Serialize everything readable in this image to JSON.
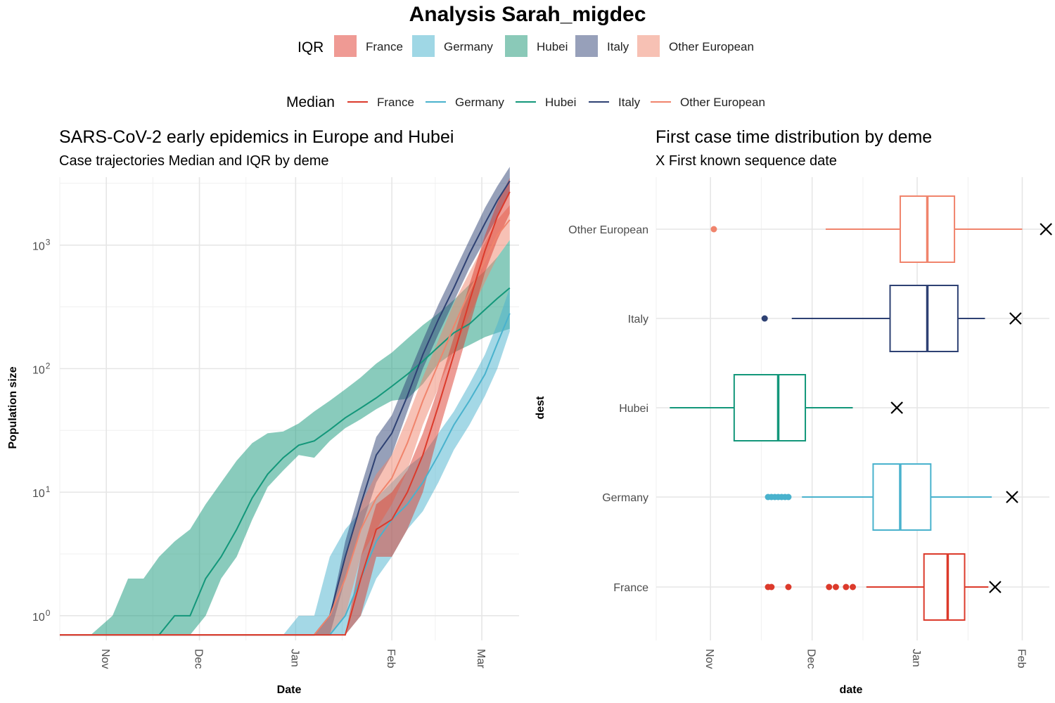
{
  "figure": {
    "title": "Analysis  Sarah_migdec",
    "legend_iqr_title": "IQR",
    "legend_median_title": "Median",
    "demes": [
      "France",
      "Germany",
      "Hubei",
      "Italy",
      "Other European"
    ]
  },
  "colors": {
    "France": "#dc3a2b",
    "Germany": "#49b2cd",
    "Hubei": "#13977a",
    "Italy": "#2e4173",
    "Other European": "#f0846c",
    "France_fill": "#ef9a94",
    "Germany_fill": "#9fd7e5",
    "Hubei_fill": "#8ac9b8",
    "Italy_fill": "#97a0ba",
    "Other European_fill": "#f7c1b4"
  },
  "chart_data": [
    {
      "type": "area",
      "title": "SARS-CoV-2 early epidemics in Europe and Hubei",
      "subtitle": "Case trajectories Median and IQR by deme",
      "xlabel": "Date",
      "ylabel": "Population size",
      "x_ticks": [
        "Nov",
        "Dec",
        "Jan",
        "Feb",
        "Mar"
      ],
      "x_tick_dates": [
        "2019-11-01",
        "2019-12-01",
        "2020-01-01",
        "2020-02-01",
        "2020-03-01"
      ],
      "xlim": [
        "2019-10-17",
        "2020-03-13"
      ],
      "y_scale": "log10",
      "y_ticks": [
        1,
        10,
        100,
        1000
      ],
      "ylim_log10": [
        -0.2,
        3.55
      ],
      "series": [
        {
          "name": "Hubei",
          "dates": [
            "2019-10-17",
            "2019-10-27",
            "2019-11-03",
            "2019-11-08",
            "2019-11-13",
            "2019-11-18",
            "2019-11-23",
            "2019-11-28",
            "2019-12-03",
            "2019-12-08",
            "2019-12-13",
            "2019-12-18",
            "2019-12-23",
            "2019-12-28",
            "2020-01-02",
            "2020-01-07",
            "2020-01-12",
            "2020-01-17",
            "2020-01-22",
            "2020-01-27",
            "2020-02-01",
            "2020-02-06",
            "2020-02-11",
            "2020-02-16",
            "2020-02-21",
            "2020-02-26",
            "2020-03-02",
            "2020-03-06",
            "2020-03-10"
          ],
          "median": [
            0.7,
            0.7,
            0.7,
            0.7,
            0.7,
            0.7,
            1,
            1,
            2,
            3,
            5,
            9,
            14,
            19,
            24,
            26,
            32,
            40,
            48,
            58,
            72,
            90,
            115,
            150,
            195,
            230,
            300,
            370,
            450
          ],
          "lower": [
            0.7,
            0.7,
            0.7,
            0.7,
            0.7,
            0.7,
            0.7,
            0.7,
            1,
            2,
            3,
            6,
            11,
            15,
            20,
            19,
            26,
            33,
            39,
            47,
            55,
            57,
            75,
            110,
            135,
            155,
            180,
            195,
            210
          ],
          "upper": [
            0.7,
            0.7,
            1,
            2,
            2,
            3,
            4,
            5,
            8,
            12,
            18,
            25,
            30,
            31,
            36,
            45,
            55,
            68,
            85,
            110,
            135,
            175,
            225,
            280,
            360,
            480,
            620,
            800,
            1100
          ]
        },
        {
          "name": "Germany",
          "dates": [
            "2019-10-17",
            "2019-12-23",
            "2019-12-28",
            "2020-01-02",
            "2020-01-07",
            "2020-01-12",
            "2020-01-17",
            "2020-01-22",
            "2020-01-27",
            "2020-02-01",
            "2020-02-06",
            "2020-02-11",
            "2020-02-16",
            "2020-02-21",
            "2020-02-26",
            "2020-03-02",
            "2020-03-06",
            "2020-03-10"
          ],
          "median": [
            0.7,
            0.7,
            0.7,
            0.7,
            0.7,
            0.7,
            1,
            2,
            4,
            6,
            8,
            12,
            20,
            35,
            55,
            90,
            160,
            280
          ],
          "lower": [
            0.7,
            0.7,
            0.7,
            0.7,
            0.7,
            0.7,
            0.7,
            1,
            2,
            3,
            5,
            7,
            12,
            22,
            35,
            60,
            100,
            200
          ],
          "upper": [
            0.7,
            0.7,
            0.7,
            1,
            1,
            3,
            5,
            7,
            9,
            12,
            16,
            20,
            30,
            45,
            75,
            130,
            230,
            450
          ]
        },
        {
          "name": "Italy",
          "dates": [
            "2019-10-17",
            "2020-01-02",
            "2020-01-07",
            "2020-01-12",
            "2020-01-17",
            "2020-01-22",
            "2020-01-27",
            "2020-02-01",
            "2020-02-06",
            "2020-02-11",
            "2020-02-16",
            "2020-02-21",
            "2020-02-26",
            "2020-03-02",
            "2020-03-06",
            "2020-03-10"
          ],
          "median": [
            0.7,
            0.7,
            0.7,
            1,
            3,
            8,
            20,
            30,
            60,
            130,
            250,
            450,
            850,
            1500,
            2300,
            3300
          ],
          "lower": [
            0.7,
            0.7,
            0.7,
            0.7,
            2,
            5,
            12,
            20,
            45,
            100,
            190,
            350,
            650,
            1100,
            1700,
            2600
          ],
          "upper": [
            0.7,
            0.7,
            0.7,
            1,
            4,
            11,
            28,
            42,
            85,
            170,
            330,
            600,
            1100,
            2000,
            3000,
            4300
          ]
        },
        {
          "name": "Other European",
          "dates": [
            "2019-10-17",
            "2020-01-02",
            "2020-01-07",
            "2020-01-12",
            "2020-01-17",
            "2020-01-22",
            "2020-01-27",
            "2020-02-01",
            "2020-02-06",
            "2020-02-11",
            "2020-02-16",
            "2020-02-21",
            "2020-02-26",
            "2020-03-02",
            "2020-03-06",
            "2020-03-10"
          ],
          "median": [
            0.7,
            0.7,
            0.7,
            1,
            2,
            5,
            9,
            13,
            25,
            55,
            110,
            220,
            420,
            750,
            1200,
            1600
          ],
          "lower": [
            0.7,
            0.7,
            0.7,
            0.7,
            1,
            3,
            5,
            8,
            15,
            35,
            70,
            140,
            270,
            500,
            800,
            1100
          ],
          "upper": [
            0.7,
            0.7,
            0.7,
            1,
            3,
            8,
            14,
            20,
            40,
            85,
            170,
            340,
            600,
            1050,
            1600,
            2100
          ]
        },
        {
          "name": "France",
          "dates": [
            "2019-10-17",
            "2020-01-12",
            "2020-01-17",
            "2020-01-22",
            "2020-01-27",
            "2020-02-01",
            "2020-02-06",
            "2020-02-11",
            "2020-02-16",
            "2020-02-21",
            "2020-02-26",
            "2020-03-02",
            "2020-03-06",
            "2020-03-10"
          ],
          "median": [
            0.7,
            0.7,
            0.7,
            2,
            5,
            6,
            10,
            20,
            50,
            130,
            350,
            900,
            1700,
            2700
          ],
          "lower": [
            0.7,
            0.7,
            0.7,
            1,
            3,
            3,
            5,
            10,
            30,
            80,
            220,
            600,
            1100,
            1800
          ],
          "upper": [
            0.7,
            0.7,
            0.7,
            3,
            8,
            10,
            15,
            30,
            70,
            180,
            480,
            1200,
            2200,
            3500
          ]
        }
      ]
    },
    {
      "type": "box",
      "title": "First case time distribution by deme",
      "subtitle": "X First known sequence date",
      "xlabel": "date",
      "ylabel": "dest",
      "x_ticks": [
        "Nov",
        "Dec",
        "Jan",
        "Feb"
      ],
      "x_tick_dates": [
        "2019-11-01",
        "2019-12-01",
        "2020-01-01",
        "2020-02-01"
      ],
      "xlim": [
        "2019-10-16",
        "2020-02-09"
      ],
      "categories": [
        "France",
        "Germany",
        "Hubei",
        "Italy",
        "Other European"
      ],
      "boxes": [
        {
          "name": "France",
          "whisker_low": "2019-12-17",
          "q1": "2020-01-03",
          "median": "2020-01-10",
          "q3": "2020-01-15",
          "whisker_high": "2020-01-22",
          "outliers": [
            "2019-11-18",
            "2019-11-19",
            "2019-11-24",
            "2019-12-06",
            "2019-12-08",
            "2019-12-11",
            "2019-12-13"
          ],
          "first_sequence": "2020-01-24"
        },
        {
          "name": "Germany",
          "whisker_low": "2019-11-28",
          "q1": "2019-12-19",
          "median": "2019-12-27",
          "q3": "2020-01-05",
          "whisker_high": "2020-01-23",
          "outliers": [
            "2019-11-18",
            "2019-11-19",
            "2019-11-20",
            "2019-11-21",
            "2019-11-22",
            "2019-11-23",
            "2019-11-24"
          ],
          "first_sequence": "2020-01-29"
        },
        {
          "name": "Hubei",
          "whisker_low": "2019-10-20",
          "q1": "2019-11-08",
          "median": "2019-11-21",
          "q3": "2019-11-29",
          "whisker_high": "2019-12-13",
          "outliers": [],
          "first_sequence": "2019-12-26"
        },
        {
          "name": "Italy",
          "whisker_low": "2019-11-25",
          "q1": "2019-12-24",
          "median": "2020-01-04",
          "q3": "2020-01-13",
          "whisker_high": "2020-01-21",
          "outliers": [
            "2019-11-17"
          ],
          "first_sequence": "2020-01-30"
        },
        {
          "name": "Other European",
          "whisker_low": "2019-12-05",
          "q1": "2019-12-27",
          "median": "2020-01-04",
          "q3": "2020-01-12",
          "whisker_high": "2020-02-01",
          "outliers": [
            "2019-11-02"
          ],
          "first_sequence": "2020-02-08"
        }
      ]
    }
  ]
}
